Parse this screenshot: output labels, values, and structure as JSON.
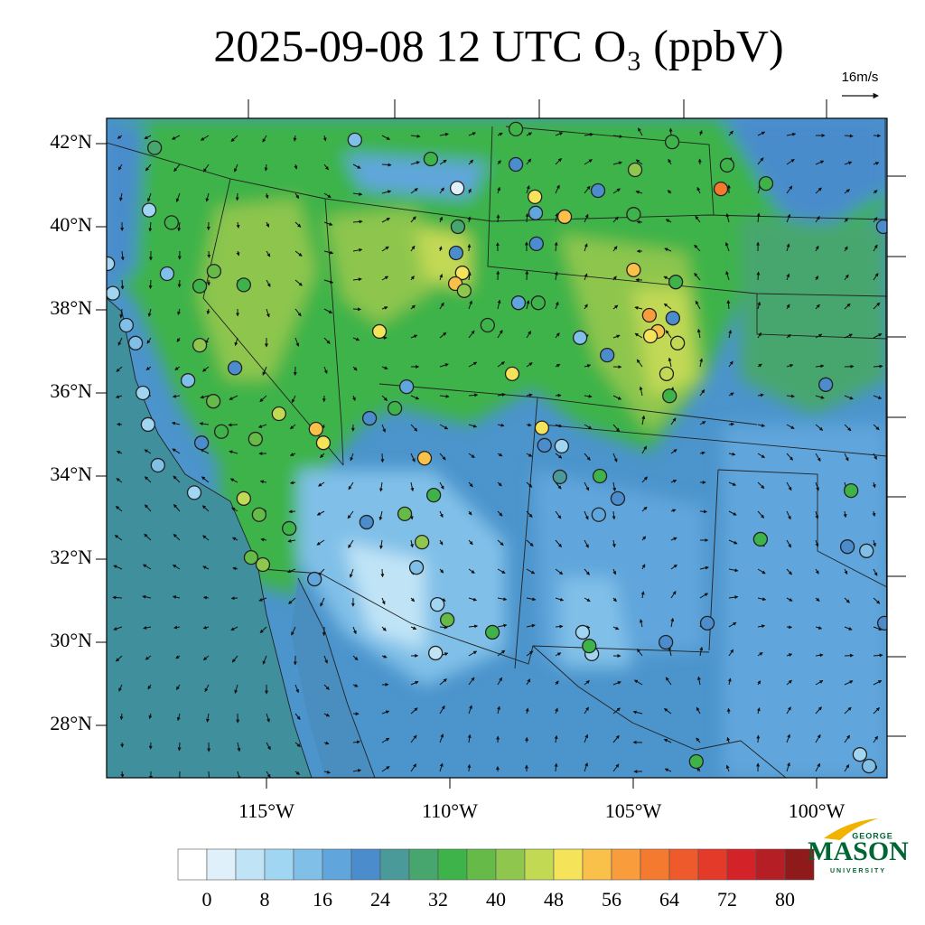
{
  "title": "2025-09-08 12 UTC O₃ (ppbV)",
  "wind_reference": "16m/s",
  "lat_ticks": [
    {
      "value": 42,
      "label": "42°N"
    },
    {
      "value": 40,
      "label": "40°N"
    },
    {
      "value": 38,
      "label": "38°N"
    },
    {
      "value": 36,
      "label": "36°N"
    },
    {
      "value": 34,
      "label": "34°N"
    },
    {
      "value": 32,
      "label": "32°N"
    },
    {
      "value": 30,
      "label": "30°N"
    },
    {
      "value": 28,
      "label": "28°N"
    }
  ],
  "lon_ticks": [
    {
      "value": -115,
      "label": "115°W"
    },
    {
      "value": -110,
      "label": "110°W"
    },
    {
      "value": -105,
      "label": "105°W"
    },
    {
      "value": -100,
      "label": "100°W"
    }
  ],
  "colorbar": {
    "levels": [
      0,
      4,
      8,
      12,
      16,
      20,
      24,
      28,
      32,
      36,
      40,
      44,
      48,
      52,
      56,
      60,
      64,
      68,
      72,
      76,
      80
    ],
    "ticks": [
      0,
      8,
      16,
      24,
      32,
      40,
      48,
      56,
      64,
      72,
      80
    ],
    "colors": [
      "#ffffff",
      "#dff0fa",
      "#c0e4f6",
      "#a0d6f2",
      "#80c0e8",
      "#60a6dc",
      "#4a8ccc",
      "#4a9a9a",
      "#46a66e",
      "#3db34a",
      "#66bb48",
      "#8ec64e",
      "#c2d954",
      "#f5e35a",
      "#f9c04a",
      "#f89c3c",
      "#f47a30",
      "#ee5a2c",
      "#e33a2a",
      "#d42229",
      "#b51e24",
      "#8e1a1c"
    ]
  },
  "stations": [
    {
      "lon": -118.05,
      "lat": 41.9,
      "o3": 30
    },
    {
      "lon": -112.59,
      "lat": 42.09,
      "o3": 12
    },
    {
      "lon": -118.2,
      "lat": 40.4,
      "o3": 10
    },
    {
      "lon": -117.59,
      "lat": 40.1,
      "o3": 34
    },
    {
      "lon": -116.82,
      "lat": 38.57,
      "o3": 34
    },
    {
      "lon": -116.43,
      "lat": 38.93,
      "o3": 38
    },
    {
      "lon": -115.62,
      "lat": 38.6,
      "o3": 34
    },
    {
      "lon": -115.86,
      "lat": 36.6,
      "o3": 20
    },
    {
      "lon": -116.82,
      "lat": 37.15,
      "o3": 42
    },
    {
      "lon": -119.19,
      "lat": 38.4,
      "o3": 10
    },
    {
      "lon": -118.57,
      "lat": 37.2,
      "o3": 14
    },
    {
      "lon": -118.37,
      "lat": 36.0,
      "o3": 10
    },
    {
      "lon": -117.14,
      "lat": 36.3,
      "o3": 14
    },
    {
      "lon": -116.45,
      "lat": 35.8,
      "o3": 36
    },
    {
      "lon": -116.23,
      "lat": 35.07,
      "o3": 34
    },
    {
      "lon": -114.66,
      "lat": 35.5,
      "o3": 44
    },
    {
      "lon": -115.3,
      "lat": 34.89,
      "o3": 36
    },
    {
      "lon": -113.65,
      "lat": 35.13,
      "o3": 54
    },
    {
      "lon": -113.45,
      "lat": 34.8,
      "o3": 48
    },
    {
      "lon": -112.19,
      "lat": 35.39,
      "o3": 22
    },
    {
      "lon": -111.92,
      "lat": 37.48,
      "o3": 48
    },
    {
      "lon": -111.18,
      "lat": 36.15,
      "o3": 16
    },
    {
      "lon": -111.5,
      "lat": 35.63,
      "o3": 34
    },
    {
      "lon": -110.69,
      "lat": 34.43,
      "o3": 54
    },
    {
      "lon": -110.44,
      "lat": 33.54,
      "o3": 34
    },
    {
      "lon": -111.23,
      "lat": 33.09,
      "o3": 36
    },
    {
      "lon": -110.76,
      "lat": 32.41,
      "o3": 42
    },
    {
      "lon": -110.91,
      "lat": 31.8,
      "o3": 12
    },
    {
      "lon": -110.34,
      "lat": 30.91,
      "o3": 10
    },
    {
      "lon": -110.39,
      "lat": 29.74,
      "o3": 6
    },
    {
      "lon": -110.07,
      "lat": 30.54,
      "o3": 38
    },
    {
      "lon": -108.84,
      "lat": 30.24,
      "o3": 34
    },
    {
      "lon": -113.69,
      "lat": 31.52,
      "o3": 16
    },
    {
      "lon": -112.27,
      "lat": 32.89,
      "o3": 22
    },
    {
      "lon": -115.62,
      "lat": 33.46,
      "o3": 46
    },
    {
      "lon": -115.2,
      "lat": 33.07,
      "o3": 36
    },
    {
      "lon": -114.38,
      "lat": 32.74,
      "o3": 34
    },
    {
      "lon": -115.1,
      "lat": 31.87,
      "o3": 42
    },
    {
      "lon": -115.42,
      "lat": 32.04,
      "o3": 36
    },
    {
      "lon": -116.97,
      "lat": 33.6,
      "o3": 8
    },
    {
      "lon": -117.96,
      "lat": 34.26,
      "o3": 12
    },
    {
      "lon": -118.23,
      "lat": 35.24,
      "o3": 10
    },
    {
      "lon": -116.77,
      "lat": 34.8,
      "o3": 22
    },
    {
      "lon": -109.83,
      "lat": 39.37,
      "o3": 20
    },
    {
      "lon": -109.66,
      "lat": 38.89,
      "o3": 48
    },
    {
      "lon": -109.85,
      "lat": 38.63,
      "o3": 54
    },
    {
      "lon": -109.61,
      "lat": 38.46,
      "o3": 42
    },
    {
      "lon": -109.78,
      "lat": 40.0,
      "o3": 30
    },
    {
      "lon": -110.52,
      "lat": 41.63,
      "o3": 34
    },
    {
      "lon": -109.8,
      "lat": 40.93,
      "o3": 2
    },
    {
      "lon": -108.2,
      "lat": 42.35,
      "o3": 34
    },
    {
      "lon": -108.2,
      "lat": 41.5,
      "o3": 22
    },
    {
      "lon": -107.68,
      "lat": 40.72,
      "o3": 48
    },
    {
      "lon": -106.87,
      "lat": 40.24,
      "o3": 54
    },
    {
      "lon": -107.66,
      "lat": 40.33,
      "o3": 16
    },
    {
      "lon": -107.64,
      "lat": 39.59,
      "o3": 22
    },
    {
      "lon": -105.96,
      "lat": 40.87,
      "o3": 22
    },
    {
      "lon": -104.95,
      "lat": 41.37,
      "o3": 42
    },
    {
      "lon": -103.94,
      "lat": 42.04,
      "o3": 34
    },
    {
      "lon": -102.44,
      "lat": 41.48,
      "o3": 34
    },
    {
      "lon": -102.61,
      "lat": 40.91,
      "o3": 60
    },
    {
      "lon": -101.38,
      "lat": 41.04,
      "o3": 34
    },
    {
      "lon": -98.18,
      "lat": 40.0,
      "o3": 22
    },
    {
      "lon": -104.99,
      "lat": 38.96,
      "o3": 54
    },
    {
      "lon": -104.99,
      "lat": 40.3,
      "o3": 34
    },
    {
      "lon": -104.56,
      "lat": 37.87,
      "o3": 56
    },
    {
      "lon": -104.33,
      "lat": 37.48,
      "o3": 54
    },
    {
      "lon": -104.53,
      "lat": 37.37,
      "o3": 48
    },
    {
      "lon": -103.79,
      "lat": 37.2,
      "o3": 44
    },
    {
      "lon": -104.09,
      "lat": 36.46,
      "o3": 46
    },
    {
      "lon": -104.01,
      "lat": 35.93,
      "o3": 34
    },
    {
      "lon": -103.84,
      "lat": 38.67,
      "o3": 34
    },
    {
      "lon": -103.92,
      "lat": 37.8,
      "o3": 22
    },
    {
      "lon": -108.3,
      "lat": 36.46,
      "o3": 48
    },
    {
      "lon": -108.97,
      "lat": 37.63,
      "o3": 34
    },
    {
      "lon": -108.13,
      "lat": 38.17,
      "o3": 16
    },
    {
      "lon": -107.59,
      "lat": 38.17,
      "o3": 34
    },
    {
      "lon": -106.45,
      "lat": 37.33,
      "o3": 14
    },
    {
      "lon": -105.71,
      "lat": 36.91,
      "o3": 22
    },
    {
      "lon": -107.49,
      "lat": 35.16,
      "o3": 48
    },
    {
      "lon": -107.42,
      "lat": 34.74,
      "o3": 22
    },
    {
      "lon": -106.95,
      "lat": 34.72,
      "o3": 10
    },
    {
      "lon": -107.0,
      "lat": 33.98,
      "o3": 24
    },
    {
      "lon": -105.91,
      "lat": 34.0,
      "o3": 34
    },
    {
      "lon": -105.42,
      "lat": 33.46,
      "o3": 22
    },
    {
      "lon": -105.94,
      "lat": 33.07,
      "o3": 16
    },
    {
      "lon": -106.38,
      "lat": 30.24,
      "o3": 8
    },
    {
      "lon": -106.13,
      "lat": 29.72,
      "o3": 10
    },
    {
      "lon": -106.2,
      "lat": 29.91,
      "o3": 34
    },
    {
      "lon": -104.11,
      "lat": 30.0,
      "o3": 22
    },
    {
      "lon": -102.98,
      "lat": 30.46,
      "o3": 22
    },
    {
      "lon": -103.28,
      "lat": 27.13,
      "o3": 34
    },
    {
      "lon": -99.75,
      "lat": 36.2,
      "o3": 22
    },
    {
      "lon": -99.06,
      "lat": 33.65,
      "o3": 34
    },
    {
      "lon": -99.16,
      "lat": 32.3,
      "o3": 22
    },
    {
      "lon": -98.64,
      "lat": 32.2,
      "o3": 14
    },
    {
      "lon": -101.53,
      "lat": 32.48,
      "o3": 34
    },
    {
      "lon": -98.57,
      "lat": 27.02,
      "o3": 14
    },
    {
      "lon": -98.15,
      "lat": 30.46,
      "o3": 22
    },
    {
      "lon": -98.82,
      "lat": 27.3,
      "o3": 10
    },
    {
      "lon": -119.33,
      "lat": 39.11,
      "o3": 10
    },
    {
      "lon": -117.71,
      "lat": 38.87,
      "o3": 14
    },
    {
      "lon": -118.82,
      "lat": 37.63,
      "o3": 12
    }
  ],
  "logo": {
    "line1": "GEORGE",
    "line2": "MASON",
    "line3": "UNIVERSITY"
  }
}
